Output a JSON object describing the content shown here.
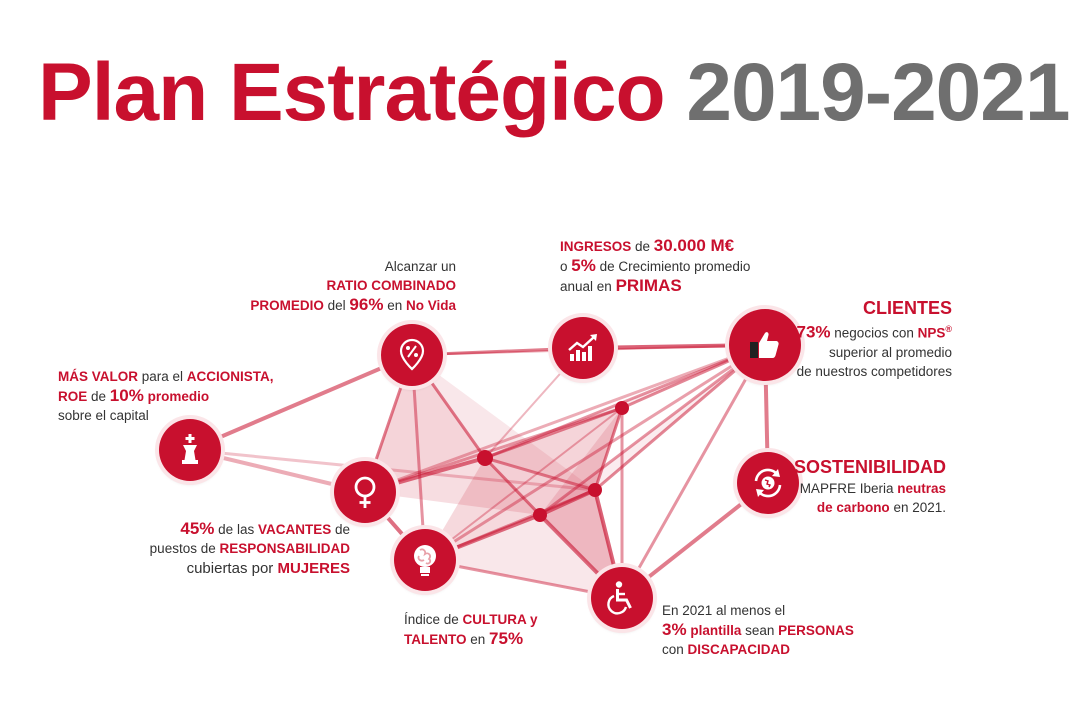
{
  "title": {
    "main": "Plan Estratégico",
    "years": "2019-2021"
  },
  "colors": {
    "accent": "#c8102e",
    "gray": "#6f6f6f",
    "text": "#333333"
  },
  "nodes": {
    "accionista": {
      "icon": "chess-king-icon",
      "l1a": "MÁS VALOR",
      "l1b": " para el ",
      "l1c": "ACCIONISTA,",
      "l2a": "ROE",
      "l2b": " de ",
      "l2c": "10%",
      "l2d": " promedio",
      "l3": "sobre el capital"
    },
    "ratio": {
      "icon": "percent-pin-icon",
      "l1": "Alcanzar un",
      "l2": "RATIO COMBINADO",
      "l3a": "PROMEDIO",
      "l3b": " del ",
      "l3c": "96%",
      "l3d": " en ",
      "l3e": "No Vida"
    },
    "ingresos": {
      "icon": "growth-chart-icon",
      "l1a": "INGRESOS",
      "l1b": " de ",
      "l1c": "30.000 M€",
      "l2a": "o ",
      "l2b": "5%",
      "l2c": " de Crecimiento promedio",
      "l3a": "anual en ",
      "l3b": "PRIMAS"
    },
    "clientes": {
      "icon": "thumbs-up-icon",
      "l1": "CLIENTES",
      "l2a": "73%",
      "l2b": " negocios con ",
      "l2c": "NPS",
      "l2d": "®",
      "l3": "superior al promedio",
      "l4": "de nuestros competidores"
    },
    "sostenibilidad": {
      "icon": "recycle-globe-icon",
      "l1": "SOSTENIBILIDAD",
      "l2a": "MAPFRE Iberia ",
      "l2b": "neutras",
      "l3a": "de carbono",
      "l3b": " en 2021."
    },
    "mujeres": {
      "icon": "female-symbol-icon",
      "l1a": "45%",
      "l1b": " de las ",
      "l1c": "VACANTES",
      "l1d": " de",
      "l2a": "puestos de ",
      "l2b": "RESPONSABILIDAD",
      "l3a": "cubiertas por ",
      "l3b": "MUJERES"
    },
    "talento": {
      "icon": "brain-bulb-icon",
      "l1a": "Índice de ",
      "l1b": "CULTURA y",
      "l2a": "TALENTO",
      "l2b": " en ",
      "l2c": "75%"
    },
    "discapacidad": {
      "icon": "wheelchair-icon",
      "l1": "En 2021 al menos el",
      "l2a": "3%",
      "l2b": " plantilla",
      "l2c": " sean ",
      "l2d": "PERSONAS",
      "l3a": "con ",
      "l3b": "DISCAPACIDAD"
    }
  }
}
